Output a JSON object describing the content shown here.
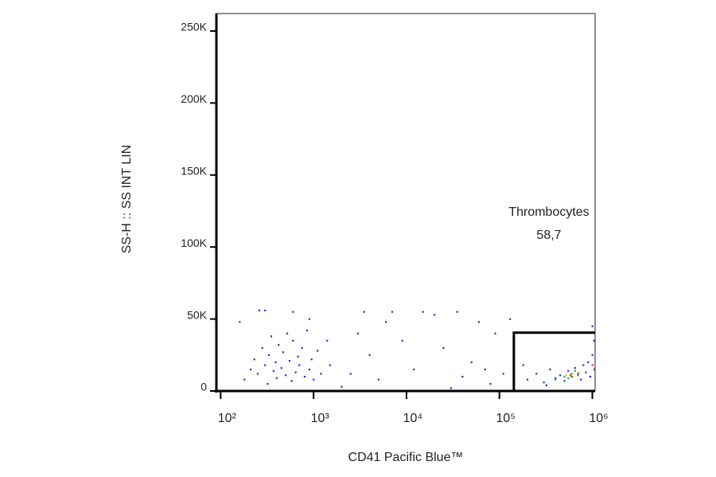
{
  "chart_data": {
    "type": "scatter",
    "x_label": "CD41 Pacific Blue™",
    "y_label": "SS-H :: SS INT LIN",
    "xscale": "log",
    "xlim": [
      90,
      1070000
    ],
    "ylim": [
      0,
      262144
    ],
    "xticks": [
      {
        "value": 100,
        "label": "10²"
      },
      {
        "value": 1000,
        "label": "10³"
      },
      {
        "value": 10000,
        "label": "10⁴"
      },
      {
        "value": 100000,
        "label": "10⁵"
      },
      {
        "value": 1000000,
        "label": "10⁶"
      }
    ],
    "yticks": [
      0,
      {
        "value": 50000,
        "label": "50K"
      },
      {
        "value": 100000,
        "label": "100K"
      },
      {
        "value": 150000,
        "label": "150K"
      },
      {
        "value": 200000,
        "label": "200K"
      },
      {
        "value": 250000,
        "label": "250K"
      }
    ],
    "gate": {
      "name": "Thrombocytes",
      "value": 58.7,
      "value_label": "58,7",
      "x": [
        143000,
        1070000
      ],
      "y": [
        0,
        40500
      ]
    },
    "series": [
      {
        "color": "#2233cc",
        "x": [
          180,
          210,
          230,
          250,
          280,
          300,
          320,
          330,
          350,
          370,
          390,
          400,
          420,
          450,
          470,
          500,
          520,
          550,
          580,
          600,
          640,
          680,
          700,
          750,
          800,
          850,
          900,
          950,
          1000,
          1100,
          1200,
          1400,
          160,
          260,
          300,
          600,
          900,
          1500,
          2000,
          2500,
          3000,
          3500,
          4000,
          5000,
          6000,
          7000,
          9000,
          12000,
          15000,
          20000,
          25000,
          30000,
          35000,
          40000,
          50000,
          60000,
          70000,
          80000,
          90000,
          110000,
          130000,
          200000,
          250000,
          300000,
          350000,
          400000,
          450000,
          500000,
          550000,
          600000,
          650000,
          700000,
          750000,
          800000,
          850000,
          900000,
          950000,
          1000000,
          1050000,
          1000000,
          1040000,
          180000,
          320000
        ],
        "y": [
          8000,
          15000,
          22000,
          12000,
          30000,
          18000,
          5000,
          25000,
          38000,
          14000,
          20000,
          9000,
          32000,
          16000,
          27000,
          11000,
          40000,
          21000,
          7000,
          35000,
          13000,
          24000,
          18000,
          30000,
          10000,
          42000,
          15000,
          22000,
          8000,
          28000,
          12000,
          35000,
          48000,
          56000,
          56000,
          55000,
          50000,
          18000,
          3000,
          12000,
          40000,
          55000,
          25000,
          8000,
          48000,
          55000,
          35000,
          15000,
          55000,
          53000,
          30000,
          2000,
          55000,
          10000,
          20000,
          48000,
          15000,
          5000,
          40000,
          12000,
          50000,
          8000,
          12000,
          6000,
          15000,
          9000,
          11000,
          7000,
          14000,
          10000,
          16000,
          12000,
          8000,
          18000,
          13000,
          20000,
          10000,
          25000,
          15000,
          45000,
          35000,
          18000,
          4000
        ]
      },
      {
        "color": "#22aa44",
        "x": [
          400000,
          500000,
          600000,
          700000,
          550000,
          650000
        ],
        "y": [
          8000,
          10000,
          12000,
          11000,
          9000,
          14000
        ]
      },
      {
        "color": "#e8d020",
        "x": [
          520000,
          620000,
          720000
        ],
        "y": [
          11000,
          10000,
          13000
        ]
      },
      {
        "color": "#e03020",
        "x": [
          580000,
          1000000
        ],
        "y": [
          11000,
          18000
        ]
      }
    ]
  }
}
